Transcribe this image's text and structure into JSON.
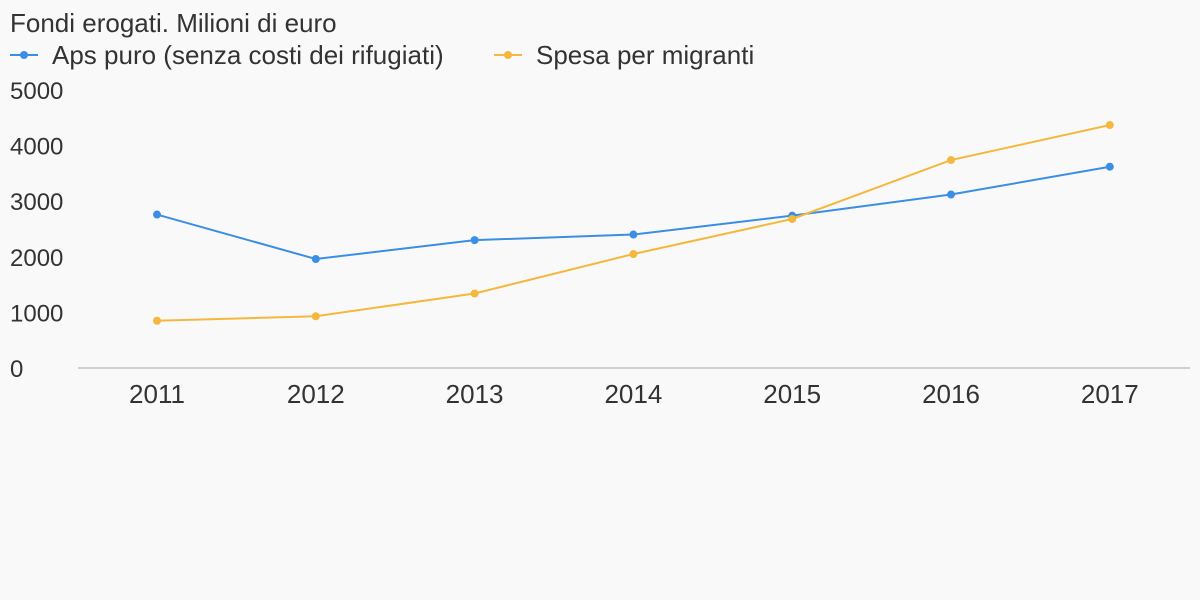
{
  "chart_data": {
    "type": "line",
    "title": "",
    "subtitle": "Fondi erogati. Milioni di euro",
    "xlabel": "",
    "ylabel": "",
    "x": [
      "2011",
      "2012",
      "2013",
      "2014",
      "2015",
      "2016",
      "2017"
    ],
    "ylim": [
      0,
      5000
    ],
    "yticks": [
      "0",
      "1000",
      "2000",
      "3000",
      "4000",
      "5000"
    ],
    "grid": false,
    "legend_position": "top-left",
    "series": [
      {
        "name": "Aps puro (senza costi dei rifugiati)",
        "color": "#3a8ee6",
        "values": [
          2760,
          1960,
          2300,
          2400,
          2740,
          3120,
          3620
        ]
      },
      {
        "name": "Spesa per migranti",
        "color": "#f5b83d",
        "values": [
          850,
          930,
          1340,
          2050,
          2680,
          3740,
          4370
        ]
      }
    ]
  }
}
